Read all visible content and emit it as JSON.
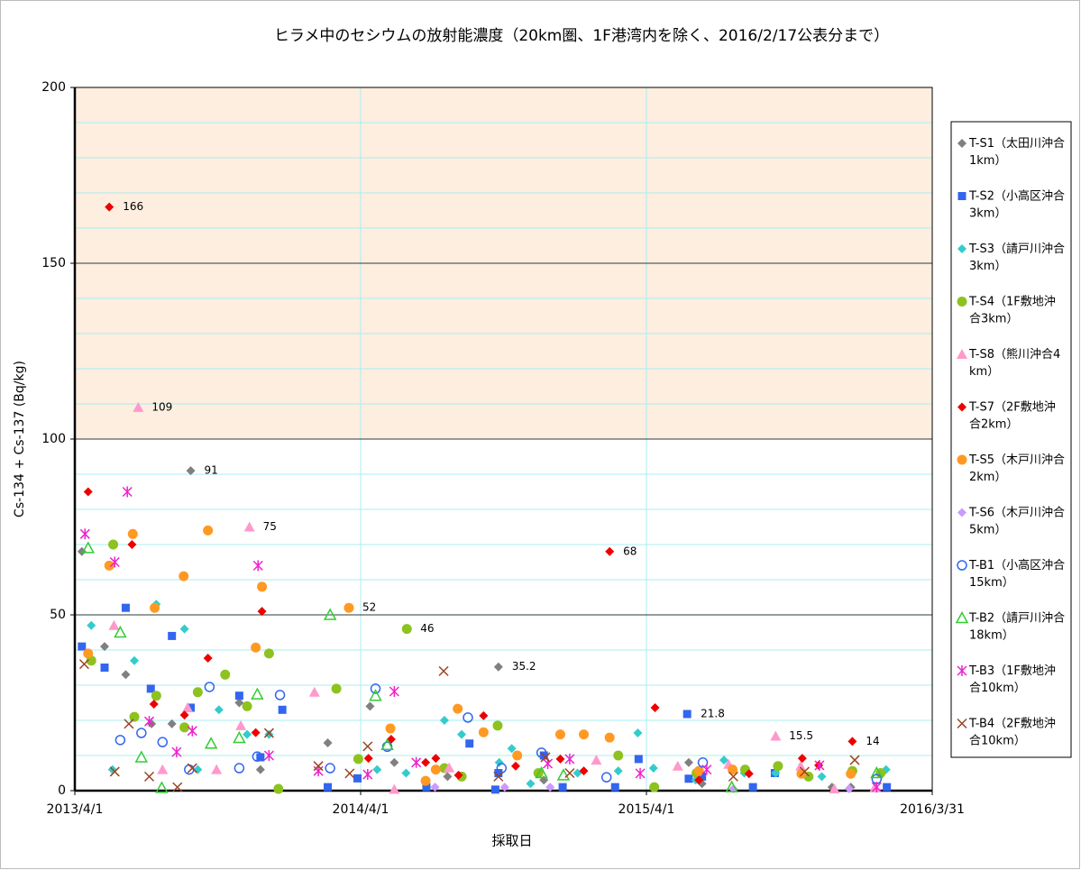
{
  "chart_data": {
    "type": "scatter",
    "title": "ヒラメ中のセシウムの放射能濃度（20km圏、1F港湾内を除く、2016/2/17公表分まで）",
    "x_label": "採取日",
    "y_label": "Cs-134 + Cs-137 (Bq/kg)",
    "xlim": [
      "2013/4/1",
      "2016/3/31"
    ],
    "xticks": [
      "2013/4/1",
      "2014/4/1",
      "2015/4/1",
      "2016/3/31"
    ],
    "ylim": [
      0,
      200
    ],
    "yticks": [
      0,
      50,
      100,
      150,
      200
    ],
    "y_minor_step": 10,
    "grid": true,
    "highlight_band": [
      100,
      200
    ],
    "highlight_color": "#fdeee0",
    "highlight_label_color": "#ff0000",
    "legend": "right",
    "series": [
      {
        "name": "T-S1（太田川沖合1km）",
        "color": "#808080",
        "marker": "diamond",
        "x": [
          "2013/4/10",
          "2013/5/9",
          "2013/6/5",
          "2013/7/8",
          "2013/8/3",
          "2013/8/27",
          "2013/10/28",
          "2013/11/24",
          "2014/2/18",
          "2014/4/13",
          "2014/5/14",
          "2014/7/21",
          "2014/9/24",
          "2014/11/21",
          "2015/5/25",
          "2015/6/11",
          "2015/11/24",
          "2015/12/18"
        ],
        "values": [
          68,
          41,
          33,
          19,
          19,
          91,
          25,
          6,
          13.6,
          24,
          8,
          4,
          35.2,
          3,
          8,
          2,
          1,
          1
        ],
        "value_labels": [
          null,
          null,
          null,
          null,
          null,
          "91",
          null,
          null,
          null,
          null,
          null,
          null,
          "35.2",
          null,
          null,
          null,
          null,
          null
        ]
      },
      {
        "name": "T-S2（小高区沖合3km）",
        "color": "#3366ee",
        "marker": "square",
        "x": [
          "2013/4/10",
          "2013/5/9",
          "2013/6/5",
          "2013/7/7",
          "2013/8/3",
          "2013/8/27",
          "2013/10/28",
          "2013/11/24",
          "2013/12/22",
          "2014/2/18",
          "2014/3/28",
          "2014/6/24",
          "2014/8/18",
          "2014/9/20",
          "2014/9/24",
          "2014/11/21",
          "2014/12/15",
          "2015/2/20",
          "2015/3/22",
          "2015/5/25",
          "2015/5/23",
          "2015/6/11",
          "2015/8/15",
          "2015/9/12",
          "2016/2/2"
        ],
        "values": [
          41,
          35,
          52,
          29,
          44,
          23.6,
          27,
          9.5,
          23,
          1,
          3.5,
          1,
          13.4,
          0.3,
          5,
          10,
          1,
          1,
          9,
          3.4,
          21.8,
          4,
          1,
          5,
          1
        ],
        "value_labels": [
          null,
          null,
          null,
          null,
          null,
          null,
          null,
          null,
          null,
          null,
          null,
          null,
          null,
          null,
          null,
          null,
          null,
          null,
          null,
          null,
          "21.8",
          null,
          null,
          null,
          null
        ]
      },
      {
        "name": "T-S3（請戸川沖合3km）",
        "color": "#33cccc",
        "marker": "diamond",
        "x": [
          "2013/4/22",
          "2013/5/19",
          "2013/6/16",
          "2013/7/14",
          "2013/8/19",
          "2013/9/5",
          "2013/10/2",
          "2013/11/7",
          "2013/12/5",
          "2014/4/22",
          "2014/5/29",
          "2014/7/17",
          "2014/8/8",
          "2014/9/25",
          "2014/10/11",
          "2014/11/4",
          "2015/1/3",
          "2015/2/24",
          "2015/3/21",
          "2015/4/10",
          "2015/6/3",
          "2015/7/9",
          "2015/8/4",
          "2015/9/13",
          "2015/11/11",
          "2016/2/1"
        ],
        "values": [
          47,
          6,
          37,
          53,
          46,
          6,
          23,
          16,
          16,
          6,
          5,
          20,
          16,
          8,
          12,
          2,
          5,
          5.6,
          16.4,
          6.4,
          3,
          8.7,
          5,
          5,
          4,
          6
        ]
      },
      {
        "name": "T-S4（1F敷地沖合3km）",
        "color": "#8dc21f",
        "marker": "circle",
        "x": [
          "2013/4/22",
          "2013/5/20",
          "2013/6/16",
          "2013/7/14",
          "2013/8/19",
          "2013/9/5",
          "2013/10/10",
          "2013/11/7",
          "2013/12/5",
          "2013/12/17",
          "2014/3/1",
          "2014/3/29",
          "2014/5/30",
          "2014/7/17",
          "2014/8/8",
          "2014/9/23",
          "2014/11/14",
          "2015/2/24",
          "2015/4/11",
          "2015/6/4",
          "2015/8/5",
          "2015/9/16",
          "2015/10/25",
          "2015/12/20",
          "2016/1/25"
        ],
        "values": [
          37,
          70,
          21,
          27,
          18,
          28,
          33,
          24,
          39,
          0.5,
          29,
          9,
          46,
          6.4,
          4,
          18.5,
          5,
          10,
          1,
          5,
          6,
          7,
          4,
          5.6,
          5
        ],
        "value_labels": [
          null,
          null,
          null,
          null,
          null,
          null,
          null,
          null,
          null,
          null,
          null,
          null,
          "46",
          null,
          null,
          null,
          null,
          null,
          null,
          null,
          null,
          null,
          null,
          null,
          null
        ]
      },
      {
        "name": "T-S8（熊川沖合4km）",
        "color": "#ff99cc",
        "marker": "triangle",
        "x": [
          "2013/5/21",
          "2013/6/21",
          "2013/7/22",
          "2013/8/23",
          "2013/9/29",
          "2013/10/30",
          "2013/11/10",
          "2014/2/1",
          "2014/5/14",
          "2014/7/23",
          "2015/1/27",
          "2015/5/11",
          "2015/7/15",
          "2015/9/13",
          "2015/10/15",
          "2015/11/27",
          "2016/1/18"
        ],
        "values": [
          47,
          109,
          6,
          23.6,
          6,
          18.5,
          75,
          28,
          0.4,
          6.5,
          8.7,
          7,
          7.5,
          15.5,
          7,
          0.5,
          1
        ],
        "value_labels": [
          null,
          "109",
          null,
          null,
          null,
          null,
          "75",
          null,
          null,
          null,
          null,
          null,
          null,
          "15.5",
          null,
          null,
          null
        ]
      },
      {
        "name": "T-S7（2F敷地沖合2km）",
        "color": "#ee0000",
        "marker": "diamond",
        "x": [
          "2013/4/18",
          "2013/5/15",
          "2013/6/13",
          "2013/7/11",
          "2013/8/19",
          "2013/9/18",
          "2013/11/18",
          "2013/11/26",
          "2014/4/11",
          "2014/5/10",
          "2014/6/23",
          "2014/7/6",
          "2014/8/4",
          "2014/9/5",
          "2014/10/16",
          "2014/12/12",
          "2015/1/11",
          "2015/2/13",
          "2015/4/12",
          "2015/6/7",
          "2015/8/10",
          "2015/10/17",
          "2015/11/7",
          "2015/12/20"
        ],
        "values": [
          85,
          166,
          70,
          24.6,
          21.5,
          37.7,
          16.5,
          51,
          9.2,
          14.6,
          8,
          9.2,
          4.4,
          21.3,
          7,
          9,
          5.6,
          68,
          23.6,
          3,
          4.8,
          9.2,
          7.2,
          14
        ],
        "value_labels": [
          null,
          "166",
          null,
          null,
          null,
          null,
          null,
          null,
          null,
          null,
          null,
          null,
          null,
          null,
          null,
          null,
          null,
          "68",
          null,
          null,
          null,
          null,
          null,
          "14"
        ]
      },
      {
        "name": "T-S5（木戸川沖合2km）",
        "color": "#ff9922",
        "marker": "circle",
        "x": [
          "2013/4/18",
          "2013/5/15",
          "2013/6/14",
          "2013/7/12",
          "2013/8/18",
          "2013/9/18",
          "2013/11/18",
          "2013/11/26",
          "2014/3/17",
          "2014/5/9",
          "2014/6/23",
          "2014/7/6",
          "2014/8/3",
          "2014/9/5",
          "2014/10/18",
          "2014/12/12",
          "2015/1/11",
          "2015/2/13",
          "2015/6/7",
          "2015/7/20",
          "2015/10/16",
          "2015/12/18"
        ],
        "values": [
          39,
          64,
          73,
          52,
          61,
          74,
          40.7,
          58,
          52,
          17.7,
          2.8,
          6,
          23.3,
          16.6,
          10,
          16,
          16,
          15.1,
          5.6,
          6,
          4.8,
          4.8
        ],
        "value_labels": [
          null,
          null,
          null,
          null,
          null,
          null,
          null,
          null,
          "52",
          null,
          null,
          null,
          null,
          null,
          null,
          null,
          null,
          null,
          null,
          null,
          null,
          null
        ]
      },
      {
        "name": "T-S6（木戸川沖合5km）",
        "color": "#cc99ff",
        "marker": "diamond",
        "x": [
          "2014/7/5",
          "2014/10/2",
          "2014/11/29",
          "2015/7/21",
          "2015/12/16"
        ],
        "values": [
          1,
          1,
          1,
          0.5,
          0.5
        ]
      },
      {
        "name": "T-B1（小高区沖合15km）",
        "color": "#3366ee",
        "marker": "open-circle",
        "x": [
          "2013/5/29",
          "2013/6/25",
          "2013/7/22",
          "2013/8/25",
          "2013/9/20",
          "2013/10/28",
          "2013/11/20",
          "2013/12/19",
          "2014/2/21",
          "2014/4/20",
          "2014/5/5",
          "2014/8/16",
          "2014/9/28",
          "2014/11/18",
          "2015/2/9",
          "2015/6/12",
          "2016/1/20"
        ],
        "values": [
          14.4,
          16.4,
          13.8,
          6,
          29.5,
          6.4,
          9.7,
          27.2,
          6.4,
          29,
          12.5,
          20.8,
          6.4,
          10.8,
          3.8,
          8,
          3.3
        ]
      },
      {
        "name": "T-B2（請戸川沖合18km）",
        "color": "#33cc33",
        "marker": "open-triangle",
        "x": [
          "2013/4/18",
          "2013/5/29",
          "2013/6/25",
          "2013/7/21",
          "2013/9/22",
          "2013/10/28",
          "2013/11/20",
          "2014/2/21",
          "2014/4/20",
          "2014/5/5",
          "2014/11/18",
          "2014/12/16",
          "2015/7/19",
          "2016/1/20"
        ],
        "values": [
          69,
          45,
          9.5,
          0.8,
          13.4,
          15,
          27.4,
          50,
          27,
          13,
          5,
          4.4,
          1,
          5
        ]
      },
      {
        "name": "T-B3（1F敷地沖合10km）",
        "color": "#ee22cc",
        "marker": "asterisk",
        "x": [
          "2013/4/14",
          "2013/5/22",
          "2013/6/7",
          "2013/7/5",
          "2013/8/9",
          "2013/8/29",
          "2013/11/21",
          "2013/12/5",
          "2014/2/6",
          "2014/4/10",
          "2014/5/14",
          "2014/6/11",
          "2014/11/26",
          "2014/12/24",
          "2015/3/24",
          "2015/6/17",
          "2015/11/8",
          "2016/1/20"
        ],
        "values": [
          73,
          65,
          85,
          19.7,
          11,
          17,
          64,
          10,
          5.6,
          4.6,
          28.2,
          8,
          7.7,
          9,
          4.9,
          6,
          7.2,
          1
        ]
      },
      {
        "name": "T-B4（2F敷地沖合10km）",
        "color": "#994422",
        "marker": "x",
        "x": [
          "2013/4/13",
          "2013/5/22",
          "2013/6/9",
          "2013/7/5",
          "2013/8/10",
          "2013/8/29",
          "2013/12/5",
          "2014/2/6",
          "2014/3/18",
          "2014/4/10",
          "2014/7/16",
          "2014/9/24",
          "2014/11/23",
          "2014/12/24",
          "2015/7/21",
          "2015/10/20",
          "2015/12/23"
        ],
        "values": [
          36,
          5.4,
          19,
          4,
          1,
          6.4,
          16.4,
          7,
          4.9,
          12.6,
          34,
          4,
          9.5,
          5,
          4,
          5.4,
          8.7
        ]
      }
    ]
  }
}
